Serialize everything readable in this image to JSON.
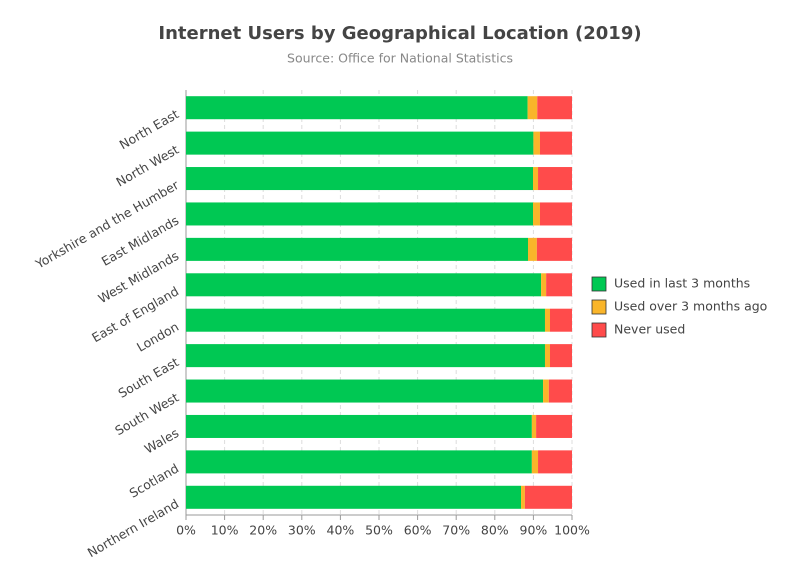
{
  "chart_data": {
    "type": "stacked-bar-horizontal",
    "title": "Internet Users by Geographical Location (2019)",
    "subtitle": "Source: Office for National Statistics",
    "categories": [
      "North East",
      "North West",
      "Yorkshire and the Humber",
      "East Midlands",
      "West Midlands",
      "East of England",
      "London",
      "South East",
      "South West",
      "Wales",
      "Scotland",
      "Northern Ireland"
    ],
    "series": [
      {
        "name": "Used in last 3 months",
        "color": "#00c853",
        "values": [
          88.5,
          90.0,
          89.9,
          89.9,
          88.6,
          92.0,
          93.0,
          93.0,
          92.5,
          89.6,
          89.6,
          86.8
        ]
      },
      {
        "name": "Used over 3 months ago",
        "color": "#f9b52a",
        "values": [
          2.5,
          1.7,
          1.3,
          1.8,
          2.3,
          1.3,
          1.3,
          1.3,
          1.5,
          1.1,
          1.6,
          1.0
        ]
      },
      {
        "name": "Never used",
        "color": "#ff4b4b",
        "values": [
          9.0,
          8.3,
          8.8,
          8.3,
          9.1,
          6.7,
          5.7,
          5.7,
          6.0,
          9.3,
          8.8,
          12.2
        ]
      }
    ],
    "xlim": [
      0,
      100
    ],
    "xticks": [
      {
        "value": 0,
        "label": "0%"
      },
      {
        "value": 10,
        "label": "10%"
      },
      {
        "value": 20,
        "label": "20%"
      },
      {
        "value": 30,
        "label": "30%"
      },
      {
        "value": 40,
        "label": "40%"
      },
      {
        "value": 50,
        "label": "50%"
      },
      {
        "value": 60,
        "label": "60%"
      },
      {
        "value": 70,
        "label": "70%"
      },
      {
        "value": 80,
        "label": "80%"
      },
      {
        "value": 90,
        "label": "90%"
      },
      {
        "value": 100,
        "label": "100%"
      }
    ],
    "grid": true,
    "legend": "right"
  }
}
